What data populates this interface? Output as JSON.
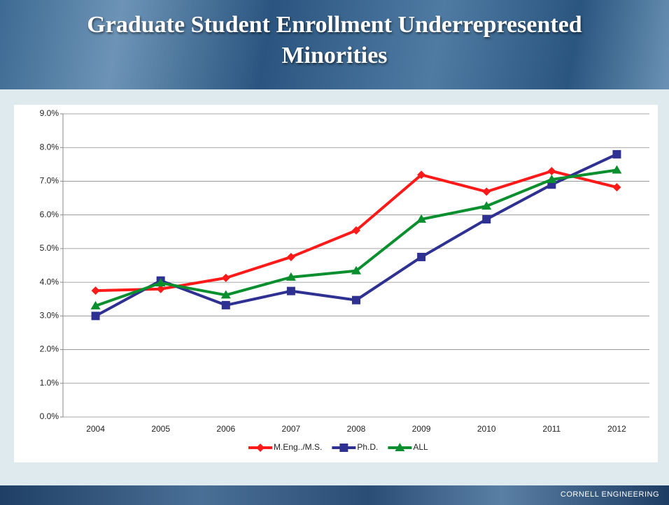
{
  "title": "Graduate Student Enrollment Underrepresented Minorities",
  "footer": "CORNELL ENGINEERING",
  "chart_data": {
    "type": "line",
    "categories": [
      "2004",
      "2005",
      "2006",
      "2007",
      "2008",
      "2009",
      "2010",
      "2011",
      "2012"
    ],
    "series": [
      {
        "name": "M.Eng../M.S.",
        "color": "#ff1a1a",
        "marker": "diamond",
        "values": [
          3.75,
          3.8,
          4.13,
          4.75,
          5.54,
          7.19,
          6.69,
          7.3,
          6.82
        ]
      },
      {
        "name": "Ph.D.",
        "color": "#2e3192",
        "marker": "square",
        "values": [
          3.0,
          4.05,
          3.32,
          3.74,
          3.47,
          4.75,
          5.87,
          6.9,
          7.8
        ]
      },
      {
        "name": "ALL",
        "color": "#0a8f2e",
        "marker": "triangle",
        "values": [
          3.3,
          3.98,
          3.62,
          4.15,
          4.34,
          5.87,
          6.26,
          7.05,
          7.33
        ]
      }
    ],
    "ylim": [
      0,
      9
    ],
    "yticks": [
      {
        "value": 0,
        "label": "0.0%"
      },
      {
        "value": 1,
        "label": "1.0%"
      },
      {
        "value": 2,
        "label": "2.0%"
      },
      {
        "value": 3,
        "label": "3.0%"
      },
      {
        "value": 4,
        "label": "4.0%"
      },
      {
        "value": 5,
        "label": "5.0%"
      },
      {
        "value": 6,
        "label": "6.0%"
      },
      {
        "value": 7,
        "label": "7.0%"
      },
      {
        "value": 8,
        "label": "8.0%"
      },
      {
        "value": 9,
        "label": "9.0%"
      }
    ],
    "grid": true,
    "legend": "bottom"
  }
}
